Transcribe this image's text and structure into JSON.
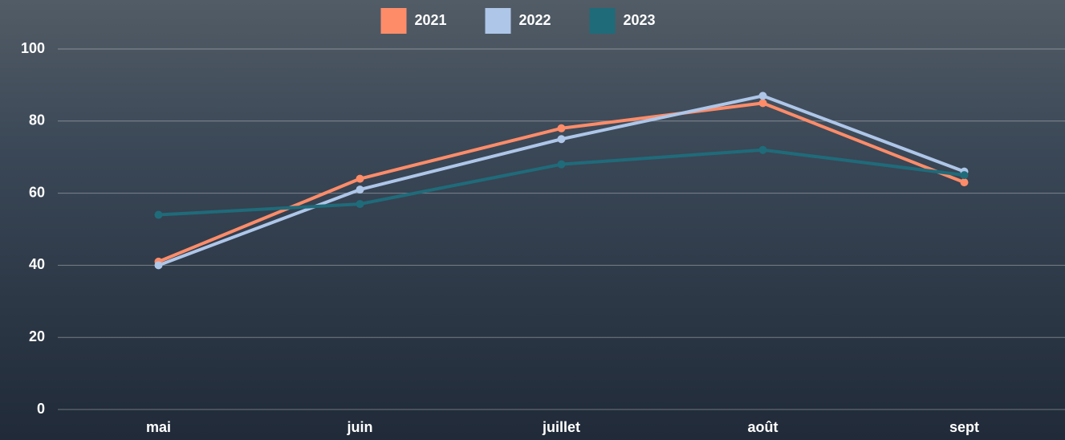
{
  "chart_data": {
    "type": "line",
    "categories": [
      "mai",
      "juin",
      "juillet",
      "août",
      "sept"
    ],
    "series": [
      {
        "name": "2021",
        "color": "#ff8c69",
        "values": [
          41,
          64,
          78,
          85,
          63
        ]
      },
      {
        "name": "2022",
        "color": "#aec6e8",
        "values": [
          40,
          61,
          75,
          87,
          66
        ]
      },
      {
        "name": "2023",
        "color": "#1f6b7a",
        "values": [
          54,
          57,
          68,
          72,
          65
        ]
      }
    ],
    "ylim": [
      0,
      100
    ],
    "yticks": [
      0,
      20,
      40,
      60,
      80,
      100
    ],
    "grid": true,
    "legend": "top"
  }
}
